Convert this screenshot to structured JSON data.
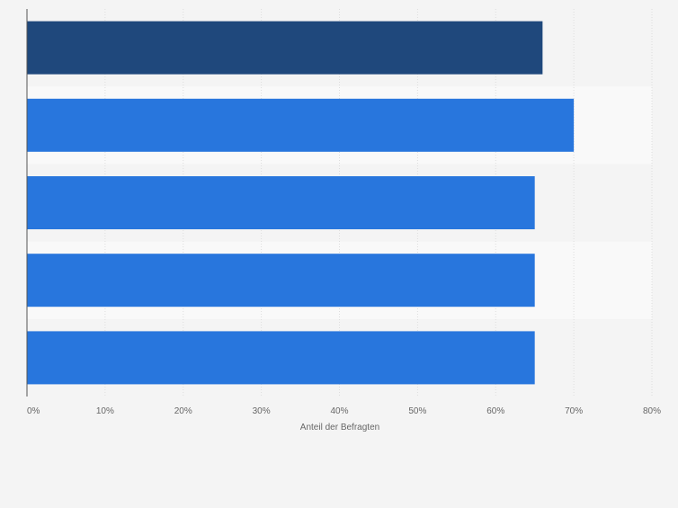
{
  "chart_data": {
    "type": "bar",
    "orientation": "horizontal",
    "categories": [
      "",
      "",
      "",
      "",
      ""
    ],
    "values": [
      66,
      70,
      65,
      65,
      65
    ],
    "highlight_index": 0,
    "xlabel": "Anteil der Befragten",
    "ylabel": "",
    "xlim": [
      0,
      80
    ],
    "x_ticks": [
      0,
      10,
      20,
      30,
      40,
      50,
      60,
      70,
      80
    ],
    "x_tick_labels": [
      "0%",
      "10%",
      "20%",
      "30%",
      "40%",
      "50%",
      "60%",
      "70%",
      "80%"
    ],
    "grid": true,
    "legend": "none",
    "colors": {
      "bar": "#2876dd",
      "bar_highlight": "#1f487c",
      "background": "#f4f4f4",
      "band_alt": "#f9f9f9",
      "grid": "#dddddd",
      "axis": "#555555",
      "text": "#666666"
    }
  }
}
